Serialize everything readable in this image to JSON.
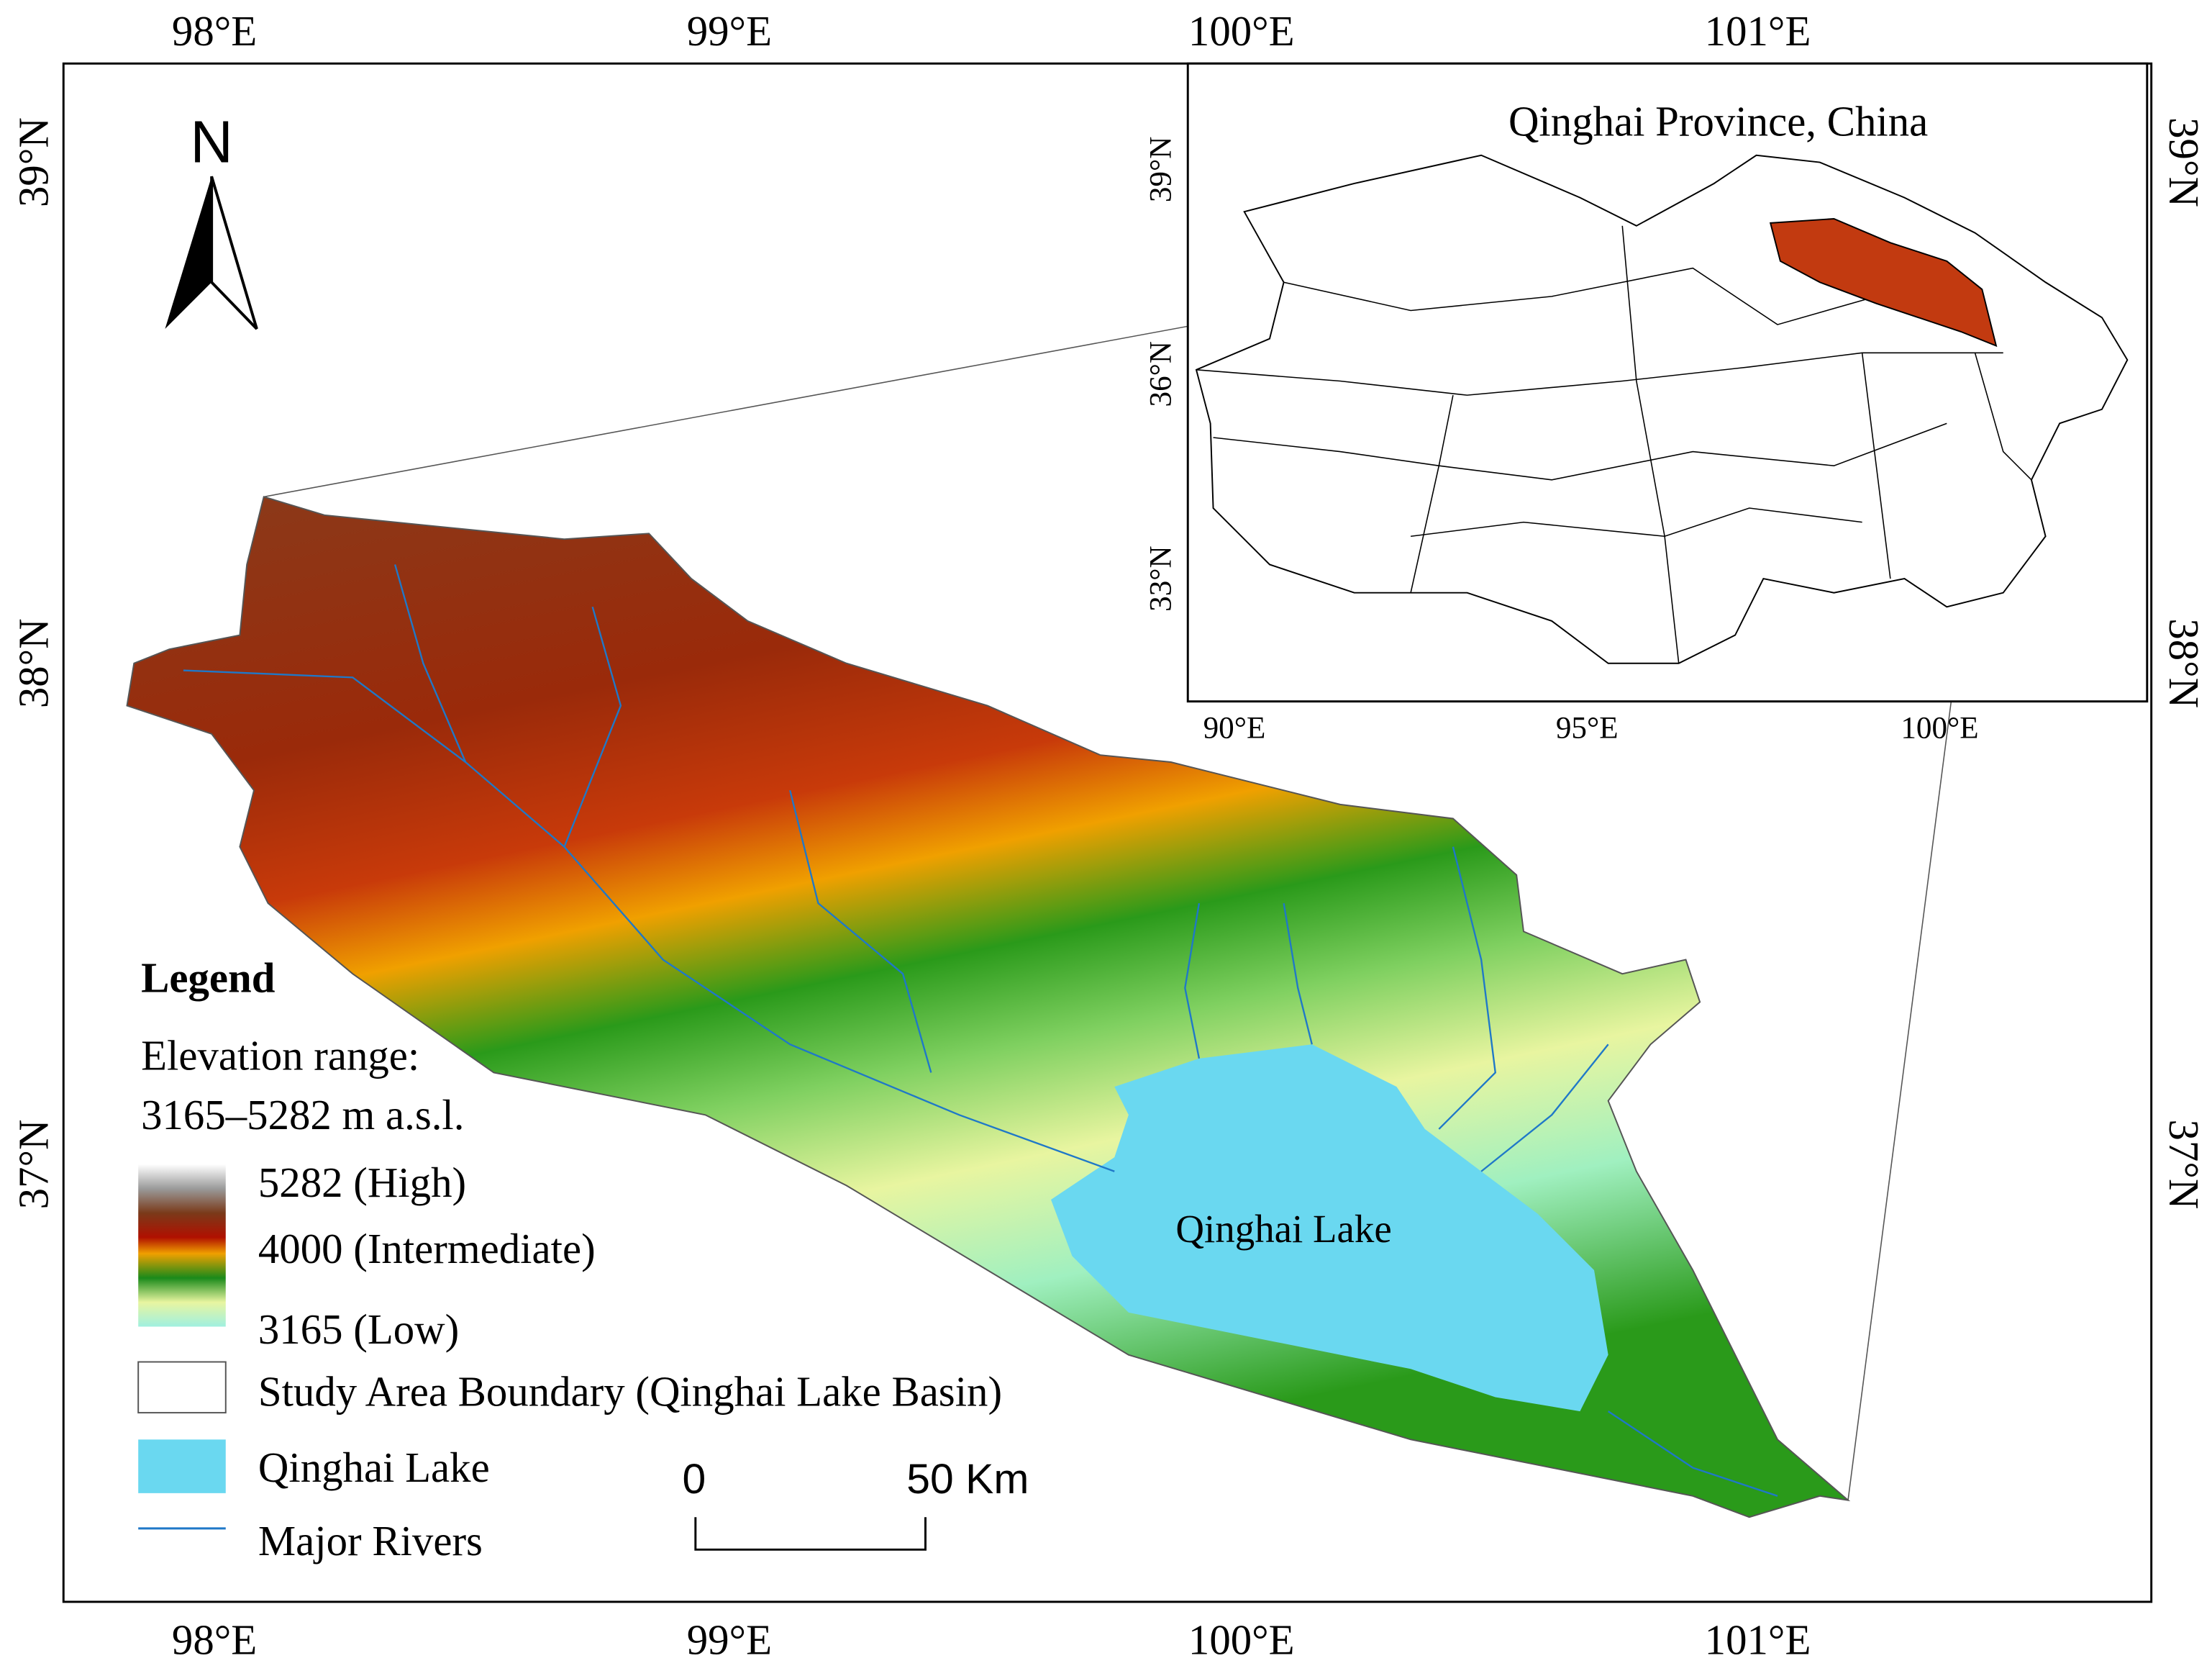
{
  "map": {
    "north_label": "N",
    "lon_labels": [
      "98°E",
      "99°E",
      "100°E",
      "101°E"
    ],
    "lat_labels": [
      "39°N",
      "38°N",
      "37°N"
    ],
    "lake_label": "Qinghai Lake",
    "inset": {
      "title": "Qinghai Province, China",
      "lat_labels": [
        "39°N",
        "36°N",
        "33°N"
      ],
      "lon_labels": [
        "90°E",
        "95°E",
        "100°E"
      ]
    },
    "legend": {
      "title": "Legend",
      "elevation_heading": "Elevation range:",
      "elevation_range": "3165–5282 m a.s.l.",
      "high": "5282 (High)",
      "intermediate": "4000 (Intermediate)",
      "low": "3165 (Low)",
      "boundary": "Study Area Boundary (Qinghai Lake Basin)",
      "lake": "Qinghai Lake",
      "rivers": "Major Rivers"
    },
    "scale_bar": {
      "start": "0",
      "end": "50 Km"
    }
  }
}
